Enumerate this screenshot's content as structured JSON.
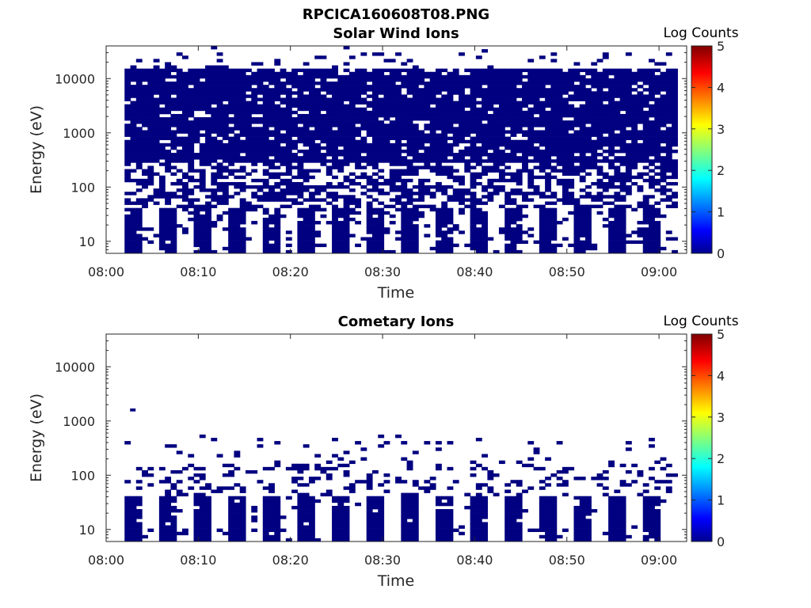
{
  "figure_title": "RPCICA160608T08.PNG",
  "chart_data": [
    {
      "type": "heatmap",
      "title": "Solar Wind Ions",
      "xlabel": "Time",
      "ylabel": "Energy (eV)",
      "x_scale": "time",
      "y_scale": "log",
      "xlim": [
        "08:00",
        "09:03"
      ],
      "ylim": [
        6,
        40000
      ],
      "xticks": [
        "08:00",
        "08:10",
        "08:20",
        "08:30",
        "08:40",
        "08:50",
        "09:00"
      ],
      "yticks": [
        {
          "value": 10,
          "label": "10"
        },
        {
          "value": 100,
          "label": "100"
        },
        {
          "value": 1000,
          "label": "1000"
        },
        {
          "value": 10000,
          "label": "10000"
        }
      ],
      "data_start": "08:02",
      "data_end": "09:02",
      "colorbar": {
        "label": "Log Counts",
        "min": 0,
        "max": 5,
        "ticks": [
          "0",
          "1",
          "2",
          "3",
          "4",
          "5"
        ],
        "colormap": "jet"
      },
      "fill_color": "#000080",
      "dense_band_eV": [
        250,
        15000
      ],
      "occupancy_description": "low energies (6-40 eV) alternate filled columns; 40-250 eV patchy; 250-15000 eV dense at log counts ~0"
    },
    {
      "type": "heatmap",
      "title": "Cometary Ions",
      "xlabel": "Time",
      "ylabel": "Energy (eV)",
      "x_scale": "time",
      "y_scale": "log",
      "xlim": [
        "08:00",
        "09:03"
      ],
      "ylim": [
        6,
        40000
      ],
      "xticks": [
        "08:00",
        "08:10",
        "08:20",
        "08:30",
        "08:40",
        "08:50",
        "09:00"
      ],
      "yticks": [
        {
          "value": 10,
          "label": "10"
        },
        {
          "value": 100,
          "label": "100"
        },
        {
          "value": 1000,
          "label": "1000"
        },
        {
          "value": 10000,
          "label": "10000"
        }
      ],
      "data_start": "08:02",
      "data_end": "09:02",
      "colorbar": {
        "label": "Log Counts",
        "min": 0,
        "max": 5,
        "ticks": [
          "0",
          "1",
          "2",
          "3",
          "4",
          "5"
        ],
        "colormap": "jet"
      },
      "fill_color": "#000080",
      "dense_band_eV": [
        6,
        40
      ],
      "occupancy_description": "low energies (6-40 eV) alternate filled columns; sparse counts up to ~500 eV, one at ~1600 eV"
    }
  ]
}
